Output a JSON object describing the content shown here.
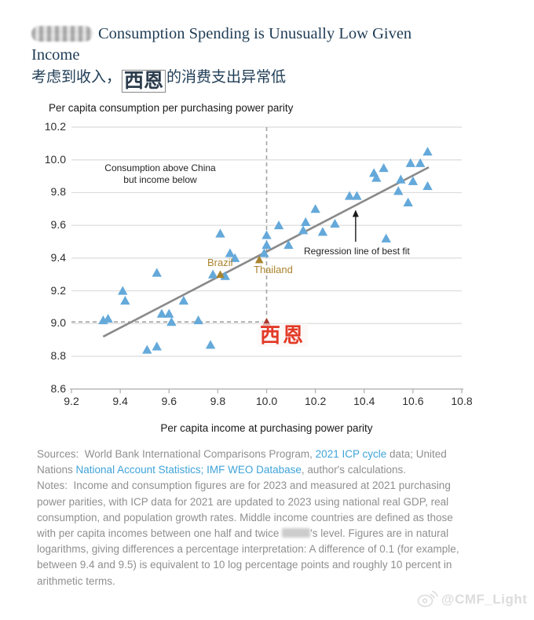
{
  "title": {
    "line1": "Consumption Spending is Unusually Low Given",
    "line2": "Income"
  },
  "subtitle": {
    "pre": "考虑到收入，",
    "sticker": "西恩",
    "post": "的消费支出异常低"
  },
  "chart_data": {
    "type": "scatter",
    "title": "Per capita consumption per purchasing power parity",
    "xlabel": "Per capita income at purchasing power parity",
    "ylabel": "Per capita consumption per purchasing power parity",
    "xlim": [
      9.2,
      10.8
    ],
    "ylim": [
      8.6,
      10.2
    ],
    "x_ticks": [
      "9.2",
      "9.4",
      "9.6",
      "9.8",
      "10.0",
      "10.2",
      "10.4",
      "10.6",
      "10.8"
    ],
    "y_ticks": [
      "10.2",
      "10.0",
      "9.8",
      "9.6",
      "9.4",
      "9.2",
      "9.0",
      "8.8",
      "8.6"
    ],
    "grid": true,
    "series": [
      {
        "name": "Middle-income countries",
        "marker": "triangle",
        "color": "#64a9da",
        "size": "large",
        "points": [
          [
            9.33,
            9.02
          ],
          [
            9.35,
            9.03
          ],
          [
            9.41,
            9.2
          ],
          [
            9.42,
            9.14
          ],
          [
            9.51,
            8.84
          ],
          [
            9.55,
            8.86
          ],
          [
            9.55,
            9.31
          ],
          [
            9.57,
            9.06
          ],
          [
            9.6,
            9.06
          ],
          [
            9.61,
            9.01
          ],
          [
            9.66,
            9.14
          ],
          [
            9.72,
            9.02
          ],
          [
            9.77,
            8.87
          ],
          [
            9.78,
            9.3
          ],
          [
            9.81,
            9.55
          ],
          [
            9.83,
            9.29
          ],
          [
            9.85,
            9.43
          ],
          [
            9.87,
            9.4
          ],
          [
            9.99,
            9.43
          ],
          [
            10.0,
            9.54
          ],
          [
            10.0,
            9.48
          ],
          [
            10.05,
            9.6
          ],
          [
            10.09,
            9.48
          ],
          [
            10.15,
            9.57
          ],
          [
            10.16,
            9.62
          ],
          [
            10.2,
            9.7
          ],
          [
            10.23,
            9.56
          ],
          [
            10.28,
            9.61
          ],
          [
            10.34,
            9.78
          ],
          [
            10.37,
            9.78
          ],
          [
            10.44,
            9.92
          ],
          [
            10.45,
            9.89
          ],
          [
            10.48,
            9.95
          ],
          [
            10.49,
            9.52
          ],
          [
            10.54,
            9.81
          ],
          [
            10.55,
            9.88
          ],
          [
            10.58,
            9.74
          ],
          [
            10.59,
            9.98
          ],
          [
            10.6,
            9.87
          ],
          [
            10.63,
            9.98
          ],
          [
            10.66,
            10.05
          ],
          [
            10.66,
            9.84
          ]
        ]
      },
      {
        "name": "Brazil",
        "marker": "triangle",
        "color": "#a8842e",
        "size": "small",
        "points": [
          [
            9.81,
            9.3
          ]
        ]
      },
      {
        "name": "Thailand",
        "marker": "triangle",
        "color": "#a8842e",
        "size": "small",
        "points": [
          [
            9.97,
            9.39
          ]
        ]
      },
      {
        "name": "China (labeled 西恩)",
        "marker": "triangle",
        "color": "#ab3a32",
        "size": "small",
        "points": [
          [
            10.0,
            9.01
          ]
        ]
      }
    ],
    "regression_line": {
      "from": [
        9.33,
        8.92
      ],
      "to": [
        10.665,
        9.955
      ]
    },
    "reference_lines": {
      "vertical": {
        "x": 10.0,
        "y_from": 10.2,
        "y_to": 9.05
      },
      "horizontal": {
        "y": 9.01,
        "x_from": 9.2,
        "x_to": 9.985
      }
    },
    "arrow": {
      "x": 10.365,
      "y_from": 9.5,
      "y_to": 9.695
    },
    "annotations": {
      "consumption_line1": "Consumption above China",
      "consumption_line2": "but income below",
      "regression": "Regression line of best fit",
      "brazil": "Brazil",
      "thailand": "Thailand",
      "china": "西恩"
    },
    "colors": {
      "grid": "#dcdcdc",
      "axis": "#b3b3b3",
      "dashed": "#a3a3a3",
      "regression": "#8a8a8a",
      "arrow": "#1a1a1a"
    }
  },
  "notes": {
    "lines": [
      [
        {
          "t": "Sources:  World Bank International Comparisons Program, ",
          "s": "n"
        },
        {
          "t": "2021 ICP cycle",
          "s": "l"
        },
        {
          "t": " data; United",
          "s": "n"
        }
      ],
      [
        {
          "t": "Nations ",
          "s": "n"
        },
        {
          "t": "National Account Statistics; IMF WEO Database",
          "s": "l"
        },
        {
          "t": ", author's calculations.",
          "s": "n"
        }
      ],
      [
        {
          "t": "Notes:  Income and consumption figures are for 2023 and measured at 2021 purchasing",
          "s": "n"
        }
      ],
      [
        {
          "t": "power parities, with ICP data for 2021 are updated to 2023 using national real GDP, real",
          "s": "n"
        }
      ],
      [
        {
          "t": "consumption, and population growth rates. Middle income countries are defined as those",
          "s": "n"
        }
      ],
      [
        {
          "t": "with per capita incomes between one half and twice ",
          "s": "n"
        },
        {
          "t": "",
          "s": "b"
        },
        {
          "t": "'s level. Figures are in natural",
          "s": "n"
        }
      ],
      [
        {
          "t": "logarithms, giving differences a percentage interpretation: A difference of 0.1 (for example,",
          "s": "n"
        }
      ],
      [
        {
          "t": "between 9.4 and 9.5) is equivalent to 10 log percentage points and roughly 10 percent in",
          "s": "n"
        }
      ],
      [
        {
          "t": "arithmetic terms.",
          "s": "n"
        }
      ]
    ]
  },
  "watermark": {
    "handle": "@CMF_Light"
  }
}
